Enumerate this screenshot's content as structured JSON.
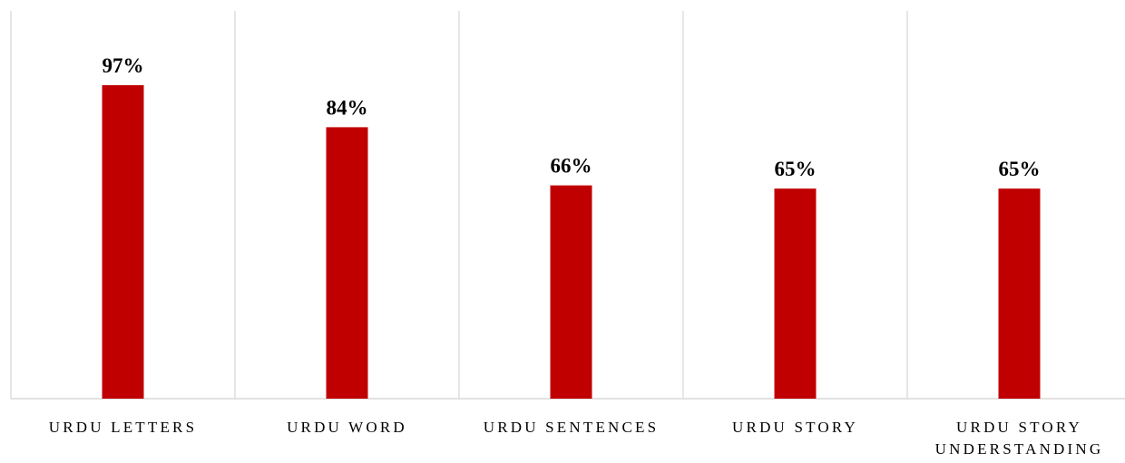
{
  "chart_data": {
    "type": "bar",
    "categories": [
      "URDU LETTERS",
      "URDU WORD",
      "URDU SENTENCES",
      "URDU STORY",
      "URDU STORY UNDERSTANDING"
    ],
    "values": [
      97,
      84,
      66,
      65,
      65
    ],
    "value_labels": [
      "97%",
      "84%",
      "66%",
      "65%",
      "65%"
    ],
    "color": "#c00000",
    "ylim": [
      0,
      120
    ]
  }
}
